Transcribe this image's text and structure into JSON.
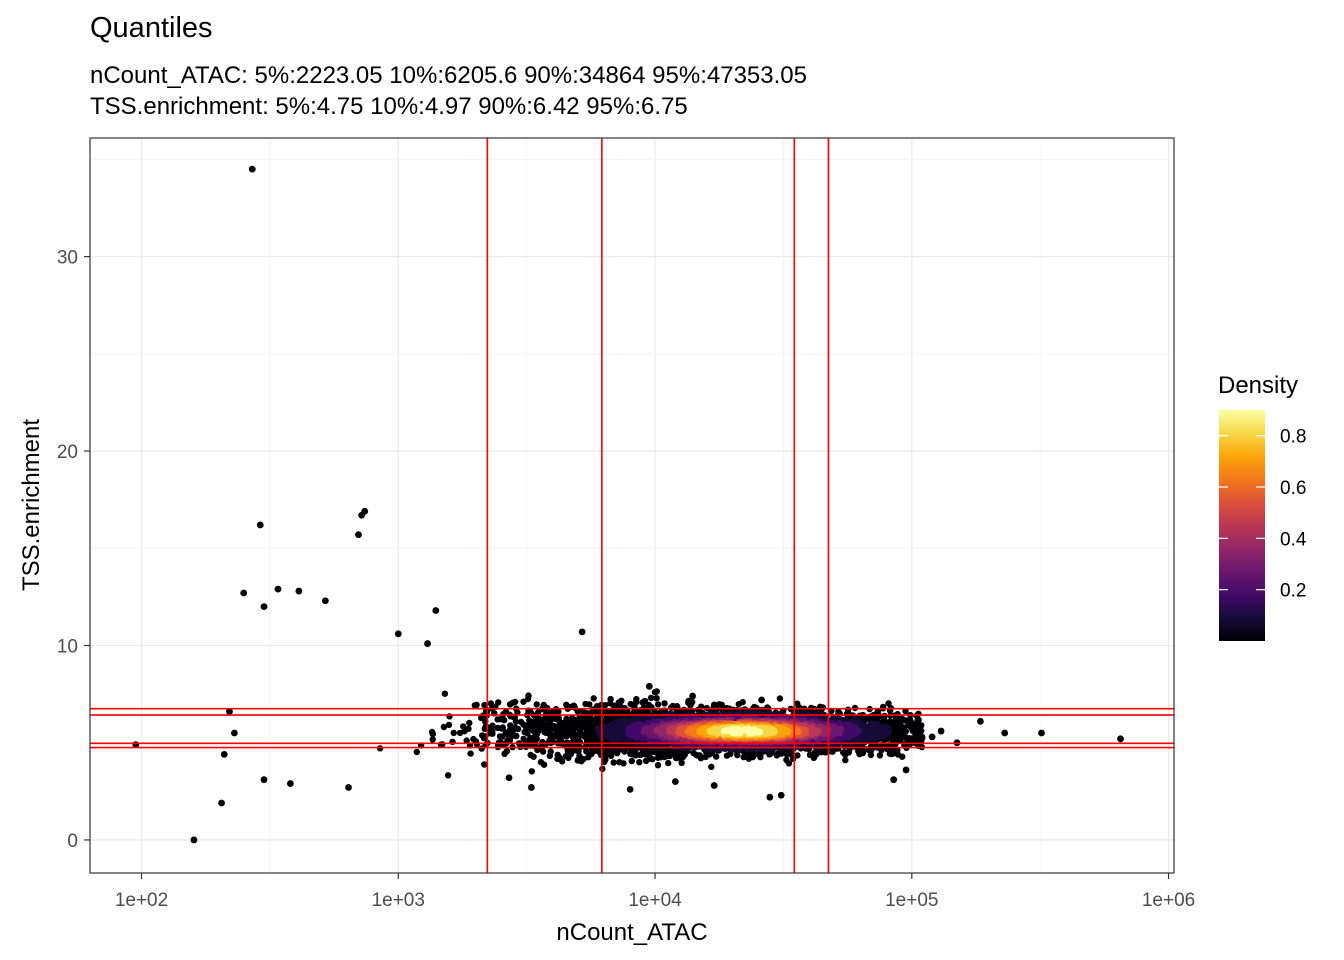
{
  "chart_data": {
    "type": "scatter",
    "title": "Quantiles",
    "subtitle_lines": [
      "nCount_ATAC: 5%:2223.05 10%:6205.6 90%:34864 95%:47353.05",
      "TSS.enrichment: 5%:4.75 10%:4.97 90%:6.42 95%:6.75"
    ],
    "xlabel": "nCount_ATAC",
    "ylabel": "TSS.enrichment",
    "x_scale": "log10",
    "xlim": [
      63,
      1050000
    ],
    "ylim": [
      -1.7,
      36.1
    ],
    "x_ticks": [
      100,
      1000,
      10000,
      100000,
      1000000
    ],
    "x_tick_labels": [
      "1e+02",
      "1e+03",
      "1e+04",
      "1e+05",
      "1e+06"
    ],
    "y_ticks": [
      0,
      10,
      20,
      30
    ],
    "y_tick_labels": [
      "0",
      "10",
      "20",
      "30"
    ],
    "grid": true,
    "color_scale": "inferno",
    "legend": {
      "title": "Density",
      "position": "right",
      "range": [
        0.0,
        0.9
      ],
      "ticks": [
        0.2,
        0.4,
        0.6,
        0.8
      ],
      "tick_labels": [
        "0.2",
        "0.4",
        "0.6",
        "0.8"
      ]
    },
    "quantile_lines": {
      "color": "#ff0000",
      "vertical_x": [
        2223.05,
        6205.6,
        34864,
        47353.05
      ],
      "horizontal_y": [
        4.75,
        4.97,
        6.42,
        6.75
      ]
    },
    "outlier_points": [
      {
        "x": 95,
        "y": 4.9
      },
      {
        "x": 160,
        "y": 0.0
      },
      {
        "x": 205,
        "y": 1.9
      },
      {
        "x": 270,
        "y": 34.5
      },
      {
        "x": 290,
        "y": 16.2
      },
      {
        "x": 250,
        "y": 12.7
      },
      {
        "x": 300,
        "y": 12.0
      },
      {
        "x": 340,
        "y": 12.9
      },
      {
        "x": 410,
        "y": 12.8
      },
      {
        "x": 720,
        "y": 16.7
      },
      {
        "x": 740,
        "y": 16.9
      },
      {
        "x": 700,
        "y": 15.7
      },
      {
        "x": 5200,
        "y": 10.7
      },
      {
        "x": 1400,
        "y": 11.8
      },
      {
        "x": 520,
        "y": 12.3
      },
      {
        "x": 220,
        "y": 6.6
      },
      {
        "x": 210,
        "y": 4.4
      },
      {
        "x": 230,
        "y": 5.5
      },
      {
        "x": 300,
        "y": 3.1
      },
      {
        "x": 380,
        "y": 2.9
      },
      {
        "x": 640,
        "y": 2.7
      },
      {
        "x": 3300,
        "y": 2.7
      },
      {
        "x": 2700,
        "y": 3.2
      },
      {
        "x": 8000,
        "y": 2.6
      },
      {
        "x": 28000,
        "y": 2.2
      },
      {
        "x": 31000,
        "y": 2.3
      },
      {
        "x": 17000,
        "y": 2.8
      },
      {
        "x": 85000,
        "y": 3.1
      },
      {
        "x": 120000,
        "y": 5.3
      },
      {
        "x": 130000,
        "y": 5.6
      },
      {
        "x": 150000,
        "y": 5.0
      },
      {
        "x": 185000,
        "y": 6.1
      },
      {
        "x": 230000,
        "y": 5.5
      },
      {
        "x": 320000,
        "y": 5.5
      },
      {
        "x": 650000,
        "y": 5.2
      },
      {
        "x": 9500,
        "y": 7.9
      },
      {
        "x": 14000,
        "y": 7.4
      },
      {
        "x": 26000,
        "y": 7.2
      },
      {
        "x": 95000,
        "y": 3.6
      },
      {
        "x": 12000,
        "y": 3.0
      },
      {
        "x": 1000,
        "y": 10.6
      },
      {
        "x": 1300,
        "y": 10.1
      }
    ],
    "density_cloud": {
      "peak_x": 22000,
      "peak_y": 5.6,
      "x_range": [
        170,
        110000
      ],
      "y_range": [
        2.0,
        9.5
      ]
    }
  }
}
